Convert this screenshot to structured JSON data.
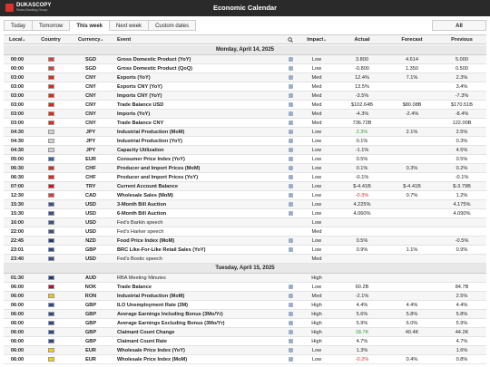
{
  "header": {
    "brand": "DUKASCOPY",
    "tagline": "Swiss Banking Group",
    "title": "Economic Calendar"
  },
  "tabs": [
    "Today",
    "Tomorrow",
    "This week",
    "Next week",
    "Custom dates"
  ],
  "active_tab": 2,
  "filter": "All",
  "columns": [
    "Local",
    "Country",
    "Currency",
    "Event",
    "Impact",
    "Actual",
    "Forecast",
    "Previous"
  ],
  "days": [
    {
      "title": "Monday, April 14, 2025",
      "rows": [
        {
          "time": "00:00",
          "flag": "#e03a3e",
          "currency": "SGD",
          "event": "Gross Domestic Product (YoY)",
          "bold": true,
          "impact": "Low",
          "actual": "3.800",
          "forecast": "4.614",
          "previous": "5.000"
        },
        {
          "time": "00:00",
          "flag": "#e03a3e",
          "currency": "SGD",
          "event": "Gross Domestic Product (QoQ)",
          "bold": true,
          "impact": "Low",
          "actual": "-0.800",
          "forecast": "1.350",
          "previous": "0.500"
        },
        {
          "time": "03:00",
          "flag": "#de2910",
          "currency": "CNY",
          "event": "Exports (YoY)",
          "bold": true,
          "impact": "Med",
          "actual": "12.4%",
          "forecast": "7.1%",
          "previous": "2.3%"
        },
        {
          "time": "03:00",
          "flag": "#de2910",
          "currency": "CNY",
          "event": "Exports CNY (YoY)",
          "bold": true,
          "impact": "Med",
          "actual": "13.5%",
          "previous": "3.4%"
        },
        {
          "time": "03:00",
          "flag": "#de2910",
          "currency": "CNY",
          "event": "Imports CNY (YoY)",
          "bold": true,
          "impact": "Med",
          "actual": "-3.5%",
          "previous": "-7.3%"
        },
        {
          "time": "03:00",
          "flag": "#de2910",
          "currency": "CNY",
          "event": "Trade Balance USD",
          "bold": true,
          "impact": "Med",
          "actual": "$102.64B",
          "forecast": "$80.08B",
          "previous": "$170.51B"
        },
        {
          "time": "03:00",
          "flag": "#de2910",
          "currency": "CNY",
          "event": "Imports (YoY)",
          "bold": true,
          "impact": "Med",
          "actual": "-4.3%",
          "forecast": "-2.4%",
          "previous": "-8.4%"
        },
        {
          "time": "03:00",
          "flag": "#de2910",
          "currency": "CNY",
          "event": "Trade Balance CNY",
          "bold": true,
          "impact": "Med",
          "actual": "736.72B",
          "previous": "122.00B"
        },
        {
          "time": "04:30",
          "flag": "#d0d0d0",
          "currency": "JPY",
          "event": "Industrial Production (MoM)",
          "bold": true,
          "impact": "Low",
          "actual": "2.3%",
          "actual_color": "#2e9e3e",
          "forecast": "2.1%",
          "previous": "2.5%"
        },
        {
          "time": "04:30",
          "flag": "#d0d0d0",
          "currency": "JPY",
          "event": "Industrial Production (YoY)",
          "bold": true,
          "impact": "Low",
          "actual": "0.1%",
          "previous": "0.3%"
        },
        {
          "time": "04:30",
          "flag": "#d0d0d0",
          "currency": "JPY",
          "event": "Capacity Utilization",
          "bold": true,
          "impact": "Low",
          "actual": "-1.1%",
          "previous": "4.5%"
        },
        {
          "time": "05:00",
          "flag": "#3a63b8",
          "currency": "EUR",
          "event": "Consumer Price Index (YoY)",
          "bold": true,
          "impact": "Low",
          "actual": "0.5%",
          "previous": "0.5%"
        },
        {
          "time": "06:30",
          "flag": "#d52b1e",
          "currency": "CHF",
          "event": "Producer and Import Prices (MoM)",
          "bold": true,
          "impact": "Low",
          "actual": "0.1%",
          "forecast": "0.3%",
          "previous": "0.2%"
        },
        {
          "time": "06:30",
          "flag": "#d52b1e",
          "currency": "CHF",
          "event": "Producer and Import Prices (YoY)",
          "bold": true,
          "impact": "Low",
          "actual": "-0.1%",
          "previous": "-0.1%"
        },
        {
          "time": "07:00",
          "flag": "#e30a17",
          "currency": "TRY",
          "event": "Current Account Balance",
          "bold": true,
          "impact": "Low",
          "actual": "$-4.41B",
          "forecast": "$-4.41B",
          "previous": "$-3.79B"
        },
        {
          "time": "12:30",
          "flag": "#e03a3e",
          "currency": "CAD",
          "event": "Wholesale Sales (MoM)",
          "bold": true,
          "impact": "Low",
          "actual": "-0.3%",
          "actual_color": "#d9322b",
          "forecast": "0.7%",
          "previous": "1.2%"
        },
        {
          "time": "15:30",
          "flag": "#3c4f8c",
          "currency": "USD",
          "event": "3-Month Bill Auction",
          "bold": true,
          "impact": "Low",
          "actual": "4.225%",
          "previous": "4.175%"
        },
        {
          "time": "15:30",
          "flag": "#3c4f8c",
          "currency": "USD",
          "event": "6-Month Bill Auction",
          "bold": true,
          "impact": "Low",
          "actual": "4.060%",
          "previous": "4.090%"
        },
        {
          "time": "16:00",
          "flag": "#3c4f8c",
          "currency": "USD",
          "event": "Fed's Barkin speech",
          "bold": false,
          "impact": "Low"
        },
        {
          "time": "22:00",
          "flag": "#3c4f8c",
          "currency": "USD",
          "event": "Fed's Harker speech",
          "bold": false,
          "impact": "Med"
        },
        {
          "time": "22:45",
          "flag": "#1f3a7a",
          "currency": "NZD",
          "event": "Food Price Index (MoM)",
          "bold": true,
          "impact": "Low",
          "actual": "0.5%",
          "previous": "-0.5%"
        },
        {
          "time": "23:01",
          "flag": "#2b4a8c",
          "currency": "GBP",
          "event": "BRC Like-For-Like Retail Sales (YoY)",
          "bold": true,
          "impact": "Low",
          "actual": "0.9%",
          "forecast": "1.1%",
          "previous": "0.9%"
        },
        {
          "time": "23:40",
          "flag": "#3c4f8c",
          "currency": "USD",
          "event": "Fed's Bostic speech",
          "bold": false,
          "impact": "Med"
        }
      ]
    },
    {
      "title": "Tuesday, April 15, 2025",
      "rows": [
        {
          "time": "01:30",
          "flag": "#1f3a7a",
          "currency": "AUD",
          "event": "RBA Meeting Minutes",
          "bold": false,
          "impact": "High"
        },
        {
          "time": "06:00",
          "flag": "#ba0c2f",
          "currency": "NOK",
          "event": "Trade Balance",
          "bold": true,
          "impact": "Low",
          "actual": "60.2B",
          "previous": "84.7B"
        },
        {
          "time": "06:00",
          "flag": "#f2c700",
          "currency": "RON",
          "event": "Industrial Production (MoM)",
          "bold": true,
          "impact": "Med",
          "actual": "-2.1%",
          "previous": "2.5%"
        },
        {
          "time": "06:00",
          "flag": "#2b4a8c",
          "currency": "GBP",
          "event": "ILO Unemployment Rate (3M)",
          "bold": true,
          "impact": "High",
          "actual": "4.4%",
          "forecast": "4.4%",
          "previous": "4.4%"
        },
        {
          "time": "06:00",
          "flag": "#2b4a8c",
          "currency": "GBP",
          "event": "Average Earnings Including Bonus (3Mo/Yr)",
          "bold": true,
          "impact": "High",
          "actual": "5.6%",
          "forecast": "5.8%",
          "previous": "5.8%"
        },
        {
          "time": "06:00",
          "flag": "#2b4a8c",
          "currency": "GBP",
          "event": "Average Earnings Excluding Bonus (3Mo/Yr)",
          "bold": true,
          "impact": "High",
          "actual": "5.9%",
          "forecast": "6.0%",
          "previous": "5.9%"
        },
        {
          "time": "06:00",
          "flag": "#2b4a8c",
          "currency": "GBP",
          "event": "Claimant Count Change",
          "bold": true,
          "impact": "High",
          "actual": "18.7K",
          "actual_color": "#2e9e3e",
          "forecast": "40.4K",
          "previous": "44.2K"
        },
        {
          "time": "06:00",
          "flag": "#2b4a8c",
          "currency": "GBP",
          "event": "Claimant Count Rate",
          "bold": true,
          "impact": "High",
          "actual": "4.7%",
          "previous": "4.7%"
        },
        {
          "time": "06:00",
          "flag": "#ffce00",
          "currency": "EUR",
          "event": "Wholesale Price Index (YoY)",
          "bold": true,
          "impact": "Low",
          "actual": "1.3%",
          "previous": "1.6%"
        },
        {
          "time": "06:00",
          "flag": "#ffce00",
          "currency": "EUR",
          "event": "Wholesale Price Index (MoM)",
          "bold": true,
          "impact": "Low",
          "actual": "-0.2%",
          "actual_color": "#d9322b",
          "forecast": "0.4%",
          "previous": "0.8%"
        }
      ]
    }
  ]
}
